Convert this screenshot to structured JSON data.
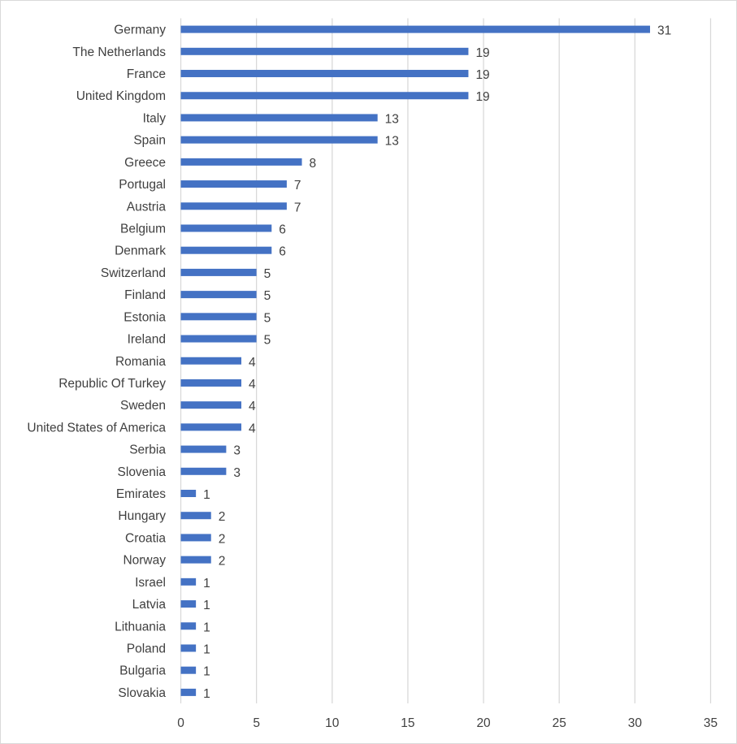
{
  "chart_data": {
    "type": "bar",
    "orientation": "horizontal",
    "title": "",
    "xlabel": "",
    "ylabel": "",
    "xlim": [
      0,
      35
    ],
    "xticks": [
      0,
      5,
      10,
      15,
      20,
      25,
      30,
      35
    ],
    "grid": true,
    "legend": "none",
    "bar_color": "#4472C4",
    "data_labels": true,
    "categories": [
      "Germany",
      "The Netherlands",
      "France",
      "United Kingdom",
      "Italy",
      "Spain",
      "Greece",
      "Portugal",
      "Austria",
      "Belgium",
      "Denmark",
      "Switzerland",
      "Finland",
      "Estonia",
      "Ireland",
      "Romania",
      "Republic Of Turkey",
      "Sweden",
      "United States of America",
      "Serbia",
      "Slovenia",
      "Emirates",
      "Hungary",
      "Croatia",
      "Norway",
      "Israel",
      "Latvia",
      "Lithuania",
      "Poland",
      "Bulgaria",
      "Slovakia"
    ],
    "values": [
      31,
      19,
      19,
      19,
      13,
      13,
      8,
      7,
      7,
      6,
      6,
      5,
      5,
      5,
      5,
      4,
      4,
      4,
      4,
      3,
      3,
      1,
      2,
      2,
      2,
      1,
      1,
      1,
      1,
      1,
      1
    ]
  }
}
